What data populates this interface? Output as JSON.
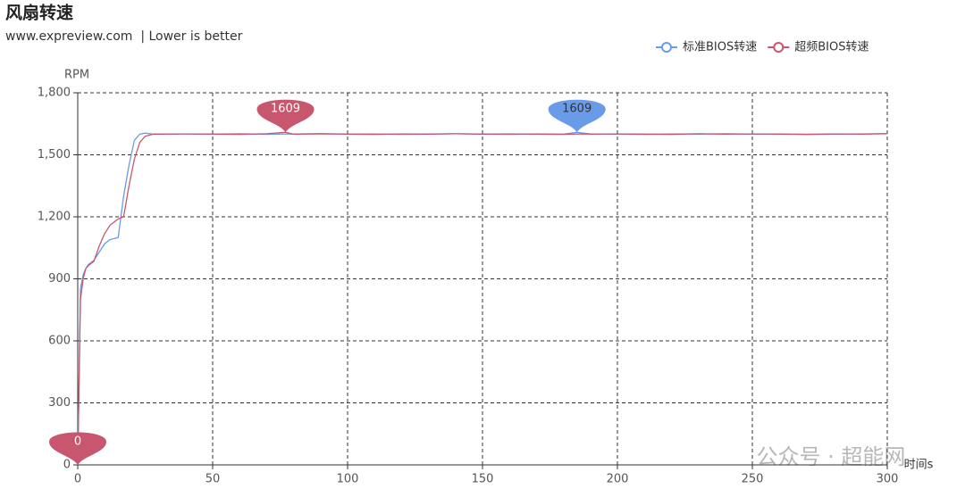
{
  "chart_data": {
    "type": "line",
    "title": "风扇转速",
    "subtitle": "www.expreview.com  | Lower is better",
    "y_label": "RPM",
    "x_label": "时间s",
    "watermark": "公众号 · 超能网",
    "legend_position": "top-right",
    "grid": true,
    "x": [
      0,
      1,
      2,
      3,
      4,
      5,
      6,
      8,
      10,
      12,
      15,
      17,
      19,
      21,
      23,
      25,
      28,
      30,
      40,
      50,
      60,
      70,
      77,
      80,
      90,
      100,
      110,
      120,
      130,
      140,
      150,
      160,
      170,
      180,
      185,
      190,
      200,
      210,
      220,
      230,
      240,
      250,
      260,
      270,
      280,
      290,
      300
    ],
    "series": [
      {
        "name": "标准BIOS转速",
        "color": "#6a9be8",
        "values": [
          0,
          850,
          920,
          950,
          970,
          980,
          990,
          1030,
          1070,
          1090,
          1100,
          1300,
          1450,
          1570,
          1600,
          1605,
          1600,
          1600,
          1601,
          1600,
          1602,
          1599,
          1601,
          1600,
          1603,
          1600,
          1601,
          1599,
          1600,
          1602,
          1600,
          1599,
          1601,
          1600,
          1609,
          1601,
          1600,
          1599,
          1601,
          1600,
          1602,
          1600,
          1601,
          1599,
          1600,
          1601,
          1603
        ],
        "mark_points": [
          {
            "x": 185,
            "value": 1609
          }
        ]
      },
      {
        "name": "超频BIOS转速",
        "color": "#c8566e",
        "values": [
          0,
          800,
          900,
          950,
          965,
          975,
          985,
          1060,
          1120,
          1160,
          1190,
          1200,
          1350,
          1480,
          1560,
          1590,
          1600,
          1600,
          1601,
          1600,
          1599,
          1602,
          1609,
          1600,
          1601,
          1600,
          1599,
          1601,
          1600,
          1602,
          1600,
          1601,
          1600,
          1599,
          1601,
          1600,
          1601,
          1600,
          1599,
          1602,
          1600,
          1601,
          1600,
          1599,
          1601,
          1600,
          1602
        ],
        "mark_points": [
          {
            "x": 77,
            "value": 1609
          },
          {
            "x": 0,
            "value": 0
          }
        ]
      }
    ],
    "xlim": [
      0,
      300
    ],
    "xticks": [
      0,
      50,
      100,
      150,
      200,
      250,
      300
    ],
    "ylim": [
      0,
      1800
    ],
    "yticks": [
      0,
      300,
      600,
      900,
      {
        "value": 1200,
        "label": "1,200"
      },
      {
        "value": 1500,
        "label": "1,500"
      },
      {
        "value": 1800,
        "label": "1,800"
      }
    ]
  }
}
